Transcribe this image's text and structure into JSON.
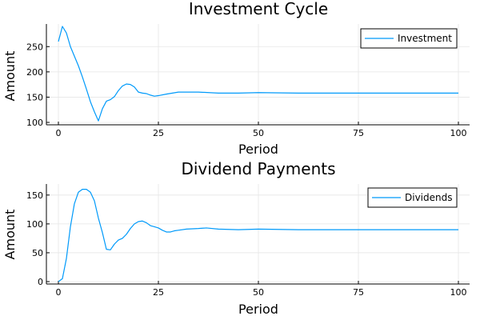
{
  "chart_data": [
    {
      "type": "line",
      "title": "Investment Cycle",
      "xlabel": "Period",
      "ylabel": "Amount",
      "xlim": [
        0,
        100
      ],
      "ylim": [
        100,
        290
      ],
      "xticks": [
        0,
        25,
        50,
        75,
        100
      ],
      "yticks": [
        100,
        150,
        200,
        250
      ],
      "grid": true,
      "legend_position": "top-right",
      "color": "#009AFA",
      "series": [
        {
          "name": "Investment",
          "x": [
            0,
            1,
            2,
            3,
            4,
            5,
            6,
            7,
            8,
            9,
            10,
            11,
            12,
            13,
            14,
            15,
            16,
            17,
            18,
            19,
            20,
            21,
            22,
            23,
            24,
            25,
            27,
            30,
            35,
            40,
            45,
            50,
            60,
            70,
            80,
            90,
            100
          ],
          "y": [
            260,
            290,
            277,
            250,
            231,
            212,
            190,
            166,
            141,
            121,
            103,
            127,
            142,
            145,
            151,
            163,
            172,
            176,
            175,
            170,
            160,
            158,
            157,
            154,
            152,
            153,
            156,
            160,
            160,
            158,
            158,
            159,
            158,
            158,
            158,
            158,
            158
          ]
        }
      ]
    },
    {
      "type": "line",
      "title": "Dividend Payments",
      "xlabel": "Period",
      "ylabel": "Amount",
      "xlim": [
        0,
        100
      ],
      "ylim": [
        0,
        165
      ],
      "xticks": [
        0,
        25,
        50,
        75,
        100
      ],
      "yticks": [
        0,
        50,
        100,
        150
      ],
      "grid": true,
      "legend_position": "top-right",
      "color": "#009AFA",
      "series": [
        {
          "name": "Dividends",
          "x": [
            0,
            1,
            2,
            3,
            4,
            5,
            6,
            7,
            8,
            9,
            10,
            11,
            12,
            13,
            14,
            15,
            16,
            17,
            18,
            19,
            20,
            21,
            22,
            23,
            24,
            25,
            26,
            27,
            28,
            29,
            30,
            32,
            35,
            37,
            40,
            45,
            50,
            60,
            70,
            80,
            90,
            100
          ],
          "y": [
            0,
            5,
            40,
            95,
            135,
            155,
            160,
            160,
            155,
            140,
            110,
            85,
            56,
            55,
            65,
            72,
            75,
            82,
            92,
            100,
            104,
            105,
            102,
            97,
            95,
            93,
            89,
            86,
            86,
            88,
            89,
            91,
            92,
            93,
            91,
            90,
            91,
            90,
            90,
            90,
            90,
            90
          ]
        }
      ]
    }
  ]
}
